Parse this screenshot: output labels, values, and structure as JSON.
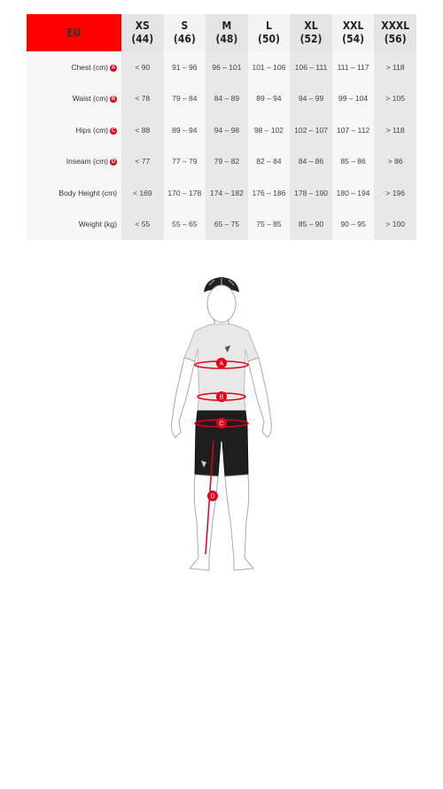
{
  "table": {
    "region": "EU",
    "sizes": [
      {
        "size": "XS",
        "eu": "(44)"
      },
      {
        "size": "S",
        "eu": "(46)"
      },
      {
        "size": "M",
        "eu": "(48)"
      },
      {
        "size": "L",
        "eu": "(50)"
      },
      {
        "size": "XL",
        "eu": "(52)"
      },
      {
        "size": "XXL",
        "eu": "(54)"
      },
      {
        "size": "XXXL",
        "eu": "(56)"
      }
    ],
    "rows": [
      {
        "label": "Chest (cm)",
        "marker": "A",
        "values": [
          "< 90",
          "91 – 96",
          "96 – 101",
          "101 – 106",
          "106 – 111",
          "111 – 117",
          "> 118"
        ]
      },
      {
        "label": "Waist (cm)",
        "marker": "B",
        "values": [
          "< 78",
          "79 – 84",
          "84 – 89",
          "89 – 94",
          "94 – 99",
          "99 – 104",
          "> 105"
        ]
      },
      {
        "label": "Hips (cm)",
        "marker": "C",
        "values": [
          "< 88",
          "89 – 94",
          "94 – 98",
          "98 – 102",
          "102 – 107",
          "107 – 112",
          "> 118"
        ]
      },
      {
        "label": "Inseam (cm)",
        "marker": "D",
        "values": [
          "< 77",
          "77 – 79",
          "79 – 82",
          "82 – 84",
          "84 – 86",
          "85 – 86",
          "> 86"
        ]
      },
      {
        "label": "Body Height (cm)",
        "marker": "",
        "values": [
          "< 169",
          "170 – 178",
          "174 – 182",
          "176 – 186",
          "178 – 190",
          "180 – 194",
          "> 196"
        ]
      },
      {
        "label": "Weight (kg)",
        "marker": "",
        "values": [
          "< 55",
          "55 – 65",
          "65 – 75",
          "75 – 85",
          "85 – 90",
          "90 – 95",
          "> 100"
        ]
      }
    ]
  },
  "figure": {
    "markers": [
      "A",
      "B",
      "C",
      "D"
    ],
    "accent_color": "#e2001a"
  }
}
